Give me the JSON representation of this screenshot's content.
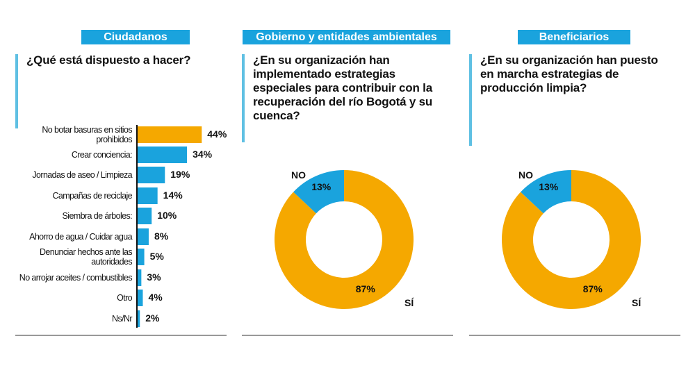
{
  "chart_data": [
    {
      "type": "bar",
      "header": "Ciudadanos",
      "title": "¿Qué está dispuesto a hacer?",
      "categories": [
        "No botar basuras en sitios prohibidos",
        "Crear conciencia:",
        "Jornadas de aseo / Limpieza",
        "Campañas de reciclaje",
        "Siembra de árboles:",
        "Ahorro de agua / Cuidar agua",
        "Denunciar hechos ante las autoridades",
        "No arrojar aceites / combustibles",
        "Otro",
        "Ns/Nr"
      ],
      "values": [
        44,
        34,
        19,
        14,
        10,
        8,
        5,
        3,
        4,
        2
      ],
      "value_labels": [
        "44%",
        "34%",
        "19%",
        "14%",
        "10%",
        "8%",
        "5%",
        "3%",
        "4%",
        "2%"
      ],
      "colors": [
        "#f5a800",
        "#1aa3dd",
        "#1aa3dd",
        "#1aa3dd",
        "#1aa3dd",
        "#1aa3dd",
        "#1aa3dd",
        "#1aa3dd",
        "#1aa3dd",
        "#1aa3dd"
      ]
    },
    {
      "type": "donut",
      "header": "Gobierno y entidades ambientales",
      "title": "¿En su organización han implementado estrategias especiales para contribuir con la recuperación del río Bogotá y su cuenca?",
      "categories": [
        "NO",
        "SÍ"
      ],
      "values": [
        13,
        87
      ],
      "value_labels": [
        "13%",
        "87%"
      ],
      "colors": [
        "#1aa3dd",
        "#f5a800"
      ]
    },
    {
      "type": "donut",
      "header": "Beneficiarios",
      "title": "¿En su organización han puesto en marcha estrategias de producción limpia?",
      "categories": [
        "NO",
        "SÍ"
      ],
      "values": [
        13,
        87
      ],
      "value_labels": [
        "13%",
        "87%"
      ],
      "colors": [
        "#1aa3dd",
        "#f5a800"
      ]
    }
  ]
}
